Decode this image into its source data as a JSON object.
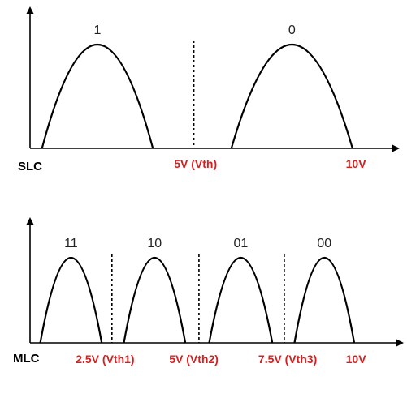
{
  "colors": {
    "axis": "#000000",
    "curve": "#000000",
    "state_text": "#222222",
    "voltage_text": "#d42020",
    "panel_text": "#000000"
  },
  "panels": [
    {
      "label": "SLC",
      "states": [
        {
          "bits": "1",
          "range_v": [
            0.35,
            3.6
          ]
        },
        {
          "bits": "0",
          "range_v": [
            5.9,
            9.45
          ]
        }
      ],
      "thresholds_v": [
        4.8
      ],
      "voltage_labels": [
        {
          "text": "5V (Vth)",
          "at_v": 4.85
        },
        {
          "text": "10V",
          "at_v": 9.55
        }
      ]
    },
    {
      "label": "MLC",
      "states": [
        {
          "bits": "11",
          "range_v": [
            0.3,
            2.1
          ]
        },
        {
          "bits": "10",
          "range_v": [
            2.75,
            4.55
          ]
        },
        {
          "bits": "01",
          "range_v": [
            5.25,
            7.1
          ]
        },
        {
          "bits": "00",
          "range_v": [
            7.75,
            9.5
          ]
        }
      ],
      "thresholds_v": [
        2.4,
        4.95,
        7.45
      ],
      "voltage_labels": [
        {
          "text": "2.5V (Vth1)",
          "at_v": 2.2
        },
        {
          "text": "5V (Vth2)",
          "at_v": 4.8
        },
        {
          "text": "7.5V (Vth3)",
          "at_v": 7.55
        },
        {
          "text": "10V",
          "at_v": 9.55
        }
      ]
    }
  ]
}
